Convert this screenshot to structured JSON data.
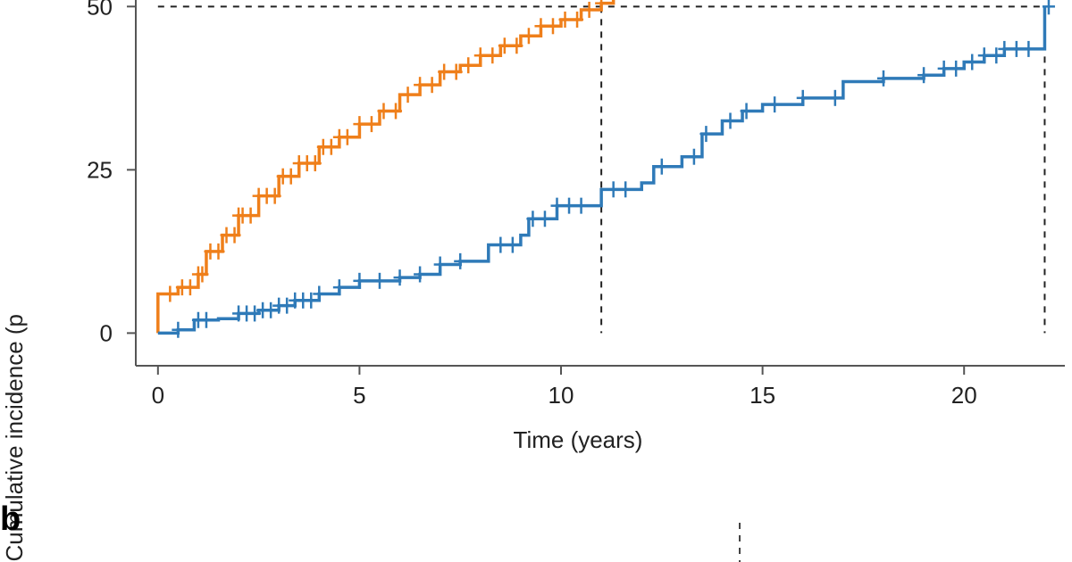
{
  "chart_data": {
    "type": "line",
    "xlabel": "Time (years)",
    "ylabel": "Cumulative incidence (p",
    "x_ticks": [
      "0",
      "5",
      "10",
      "15",
      "20"
    ],
    "y_ticks": [
      "0",
      "25",
      "50"
    ],
    "xlim": [
      -0.55,
      22.5
    ],
    "ylim": [
      -5,
      51
    ],
    "grid": false,
    "colors": {
      "orange": "#ef7f1a",
      "blue": "#2f7ab8",
      "reference": "#222222"
    },
    "reference_lines": {
      "horizontal_y": 50,
      "vertical_x": [
        11,
        22
      ]
    },
    "series": [
      {
        "color": "orange",
        "x": [
          0,
          0,
          0.5,
          1.0,
          1.2,
          1.6,
          2.0,
          2.5,
          3.0,
          3.5,
          4.0,
          4.5,
          5.0,
          5.5,
          6.0,
          6.5,
          7.0,
          7.5,
          8.0,
          8.5,
          9.0,
          9.5,
          10.0,
          10.5,
          11.0,
          11.3
        ],
        "y": [
          0,
          6,
          7,
          9,
          12.5,
          15,
          18,
          21,
          24,
          26,
          28.5,
          30,
          32,
          34,
          36.5,
          38,
          40,
          41,
          42.5,
          44,
          45.5,
          47,
          48,
          49.5,
          50.5,
          51
        ],
        "censor_x": [
          0.3,
          0.6,
          0.8,
          1.0,
          1.1,
          1.3,
          1.5,
          1.7,
          1.9,
          2.0,
          2.1,
          2.3,
          2.5,
          2.7,
          2.9,
          3.1,
          3.3,
          3.5,
          3.7,
          3.9,
          4.1,
          4.3,
          4.5,
          4.7,
          5.0,
          5.3,
          5.6,
          5.9,
          6.2,
          6.5,
          6.8,
          7.1,
          7.4,
          7.7,
          8.0,
          8.3,
          8.6,
          8.9,
          9.2,
          9.5,
          9.8,
          10.1,
          10.4,
          10.7,
          11.0
        ]
      },
      {
        "color": "blue",
        "x": [
          0,
          0.5,
          0.9,
          1.5,
          2.0,
          2.5,
          3.0,
          3.4,
          4.0,
          4.5,
          5.0,
          6.0,
          6.5,
          7.0,
          7.5,
          8.0,
          8.2,
          9.0,
          9.2,
          9.9,
          10.5,
          11.0,
          11.0,
          12.0,
          12.3,
          13.0,
          13.5,
          14.0,
          14.5,
          15.0,
          16.0,
          17.0,
          18.0,
          19.0,
          19.5,
          20.0,
          20.5,
          21.0,
          22.0,
          22.0
        ],
        "y": [
          0,
          0.5,
          2,
          2.2,
          3,
          3.5,
          4.2,
          5,
          6,
          7,
          8,
          8.5,
          9,
          10.5,
          11,
          11,
          13.5,
          15,
          17.5,
          19.5,
          19.5,
          20,
          22,
          23,
          25.5,
          27,
          30.5,
          32.5,
          34,
          35,
          36,
          38.5,
          39,
          39.5,
          40.5,
          41.5,
          42.5,
          43.5,
          43.5,
          50
        ],
        "censor_x": [
          0.5,
          1.0,
          1.2,
          2.0,
          2.2,
          2.4,
          2.6,
          2.8,
          3.0,
          3.2,
          3.4,
          3.6,
          3.8,
          4.0,
          4.5,
          5.0,
          5.5,
          6.0,
          6.5,
          7.0,
          7.5,
          8.5,
          8.8,
          9.3,
          9.6,
          9.9,
          10.2,
          10.5,
          11.3,
          11.6,
          12.5,
          13.3,
          13.6,
          14.2,
          14.6,
          15.3,
          16.0,
          16.8,
          18.0,
          19.0,
          19.5,
          19.8,
          20.2,
          20.5,
          20.8,
          21.0,
          21.3,
          21.6,
          22.1
        ]
      }
    ]
  },
  "panel_b": {
    "label": "b"
  }
}
